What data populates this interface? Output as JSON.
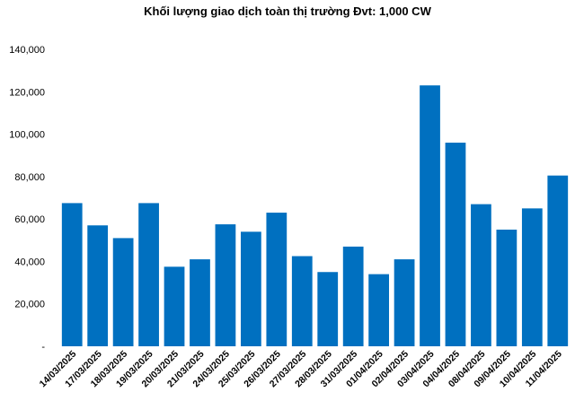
{
  "chart_data": {
    "type": "bar",
    "title": "Khối lượng giao dịch toàn thị trường Đvt: 1,000 CW",
    "xlabel": "",
    "ylabel": "",
    "ylim": [
      0,
      140000
    ],
    "yticks": [
      "-",
      "20,000",
      "40,000",
      "60,000",
      "80,000",
      "100,000",
      "120,000",
      "140,000"
    ],
    "grid": false,
    "legend": "none",
    "bar_color": "#0070C0",
    "categories": [
      "14/03/2025",
      "17/03/2025",
      "18/03/2025",
      "19/03/2025",
      "20/03/2025",
      "21/03/2025",
      "24/03/2025",
      "25/03/2025",
      "26/03/2025",
      "27/03/2025",
      "28/03/2025",
      "31/03/2025",
      "01/04/2025",
      "02/04/2025",
      "03/04/2025",
      "04/04/2025",
      "08/04/2025",
      "09/04/2025",
      "10/04/2025",
      "11/04/2025"
    ],
    "values": [
      67500,
      57000,
      51000,
      67500,
      37500,
      41000,
      57500,
      54000,
      63000,
      42500,
      35000,
      47000,
      34000,
      41000,
      123000,
      96000,
      67000,
      55000,
      65000,
      80500
    ]
  }
}
